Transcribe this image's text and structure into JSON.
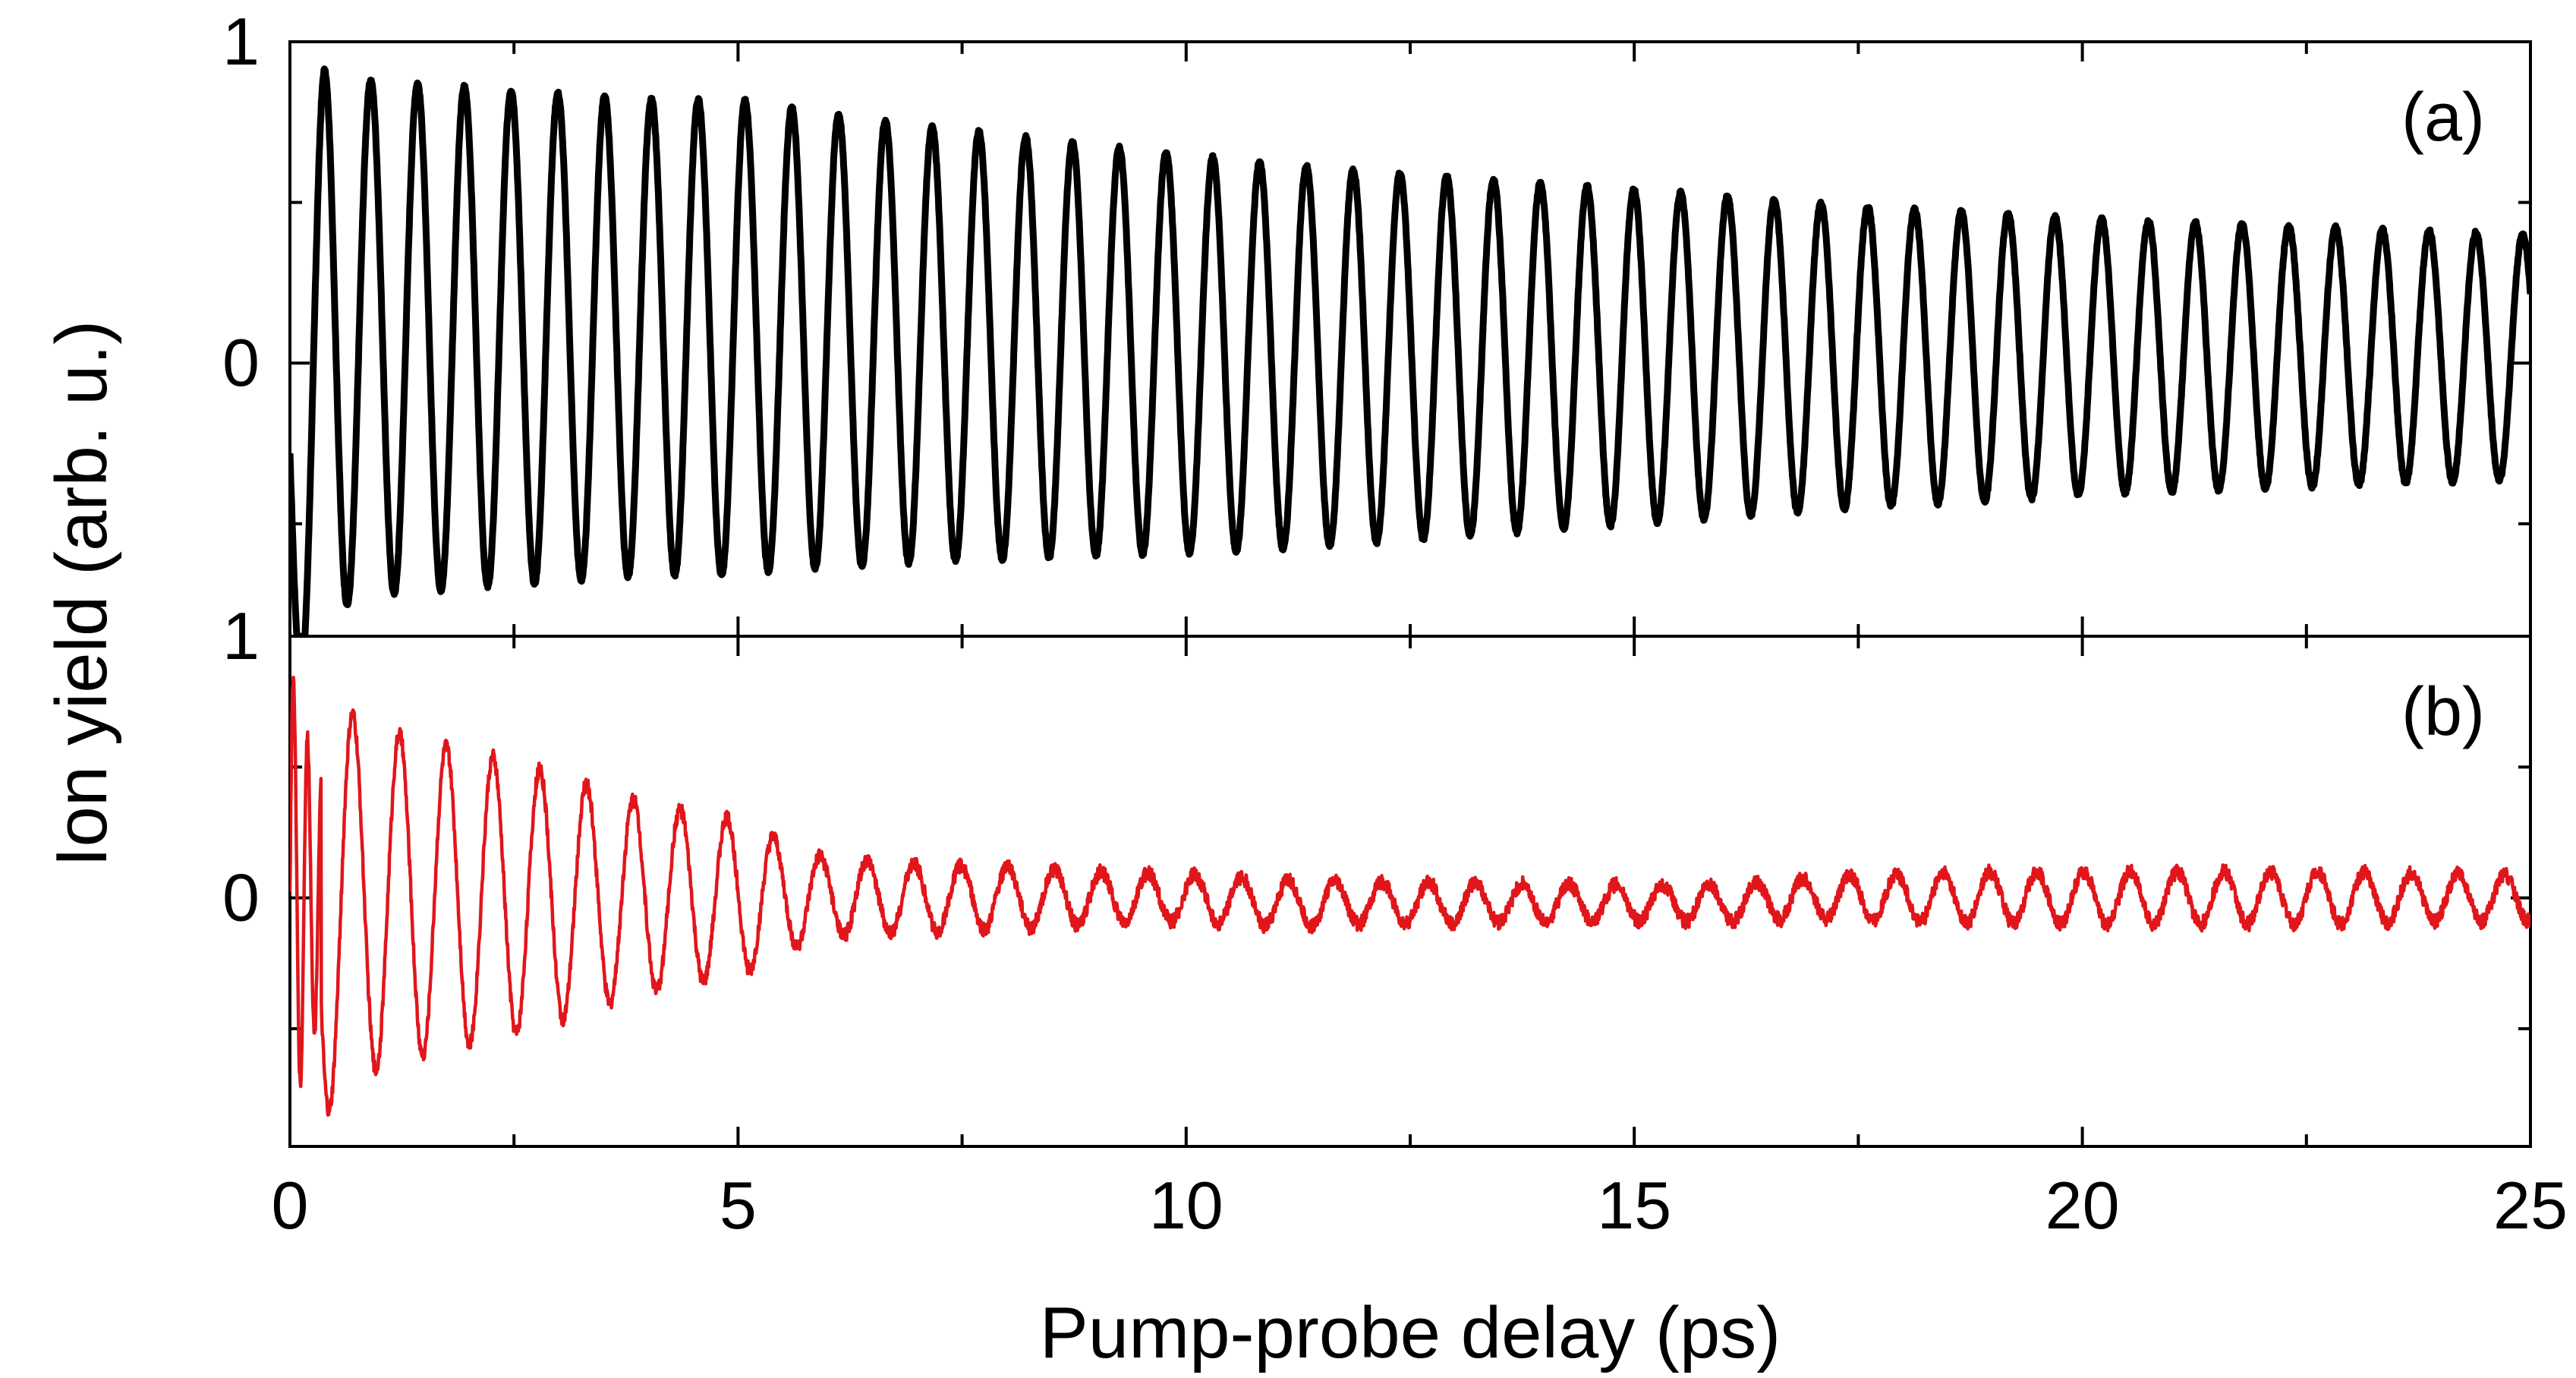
{
  "chart_data": [
    {
      "type": "line",
      "panel_label": "(a)",
      "ylabel": "Ion yield (arb. u.)",
      "xlim": [
        0,
        25
      ],
      "ylim": [
        -0.85,
        1.0
      ],
      "yticks": [
        {
          "value": 0,
          "label": "0"
        },
        {
          "value": 1,
          "label": "1"
        }
      ],
      "line_color": "#000000",
      "series": [
        {
          "x": [
            0.0,
            0.05,
            0.15,
            0.3,
            0.38,
            0.45,
            0.55,
            0.7,
            0.85,
            1.0,
            1.5,
            2.0,
            2.5,
            3.0,
            3.5,
            4.0,
            4.5,
            5.0,
            5.5,
            6.0,
            7.0,
            8.0,
            9.0,
            10.0,
            11.0,
            12.0,
            13.0,
            14.0,
            15.0,
            16.0,
            17.0,
            18.0,
            19.0,
            20.0,
            21.0,
            22.0,
            23.0,
            24.0,
            25.0
          ],
          "envelope": [
            0.62,
            0.7,
            0.78,
            0.88,
            0.93,
            0.9,
            0.85,
            0.82,
            0.8,
            0.8,
            0.79,
            0.78,
            0.77,
            0.76,
            0.75,
            0.74,
            0.74,
            0.74,
            0.72,
            0.71,
            0.68,
            0.66,
            0.64,
            0.62,
            0.6,
            0.58,
            0.56,
            0.54,
            0.52,
            0.5,
            0.48,
            0.46,
            0.45,
            0.43,
            0.42,
            0.41,
            0.4,
            0.39,
            0.38
          ],
          "offset": [
            -0.2,
            -0.22,
            -0.2,
            -0.1,
            -0.02,
            0.05,
            0.08,
            0.08,
            0.08,
            0.08,
            0.08,
            0.08,
            0.08,
            0.08,
            0.08,
            0.08,
            0.08,
            0.08,
            0.08,
            0.07,
            0.06,
            0.05,
            0.04,
            0.03,
            0.02,
            0.02,
            0.02,
            0.02,
            0.02,
            0.02,
            0.02,
            0.02,
            0.02,
            0.02,
            0.02,
            0.02,
            0.02,
            0.02,
            0.02
          ],
          "period_ps": 0.522,
          "first_peak_ps": 0.38
        }
      ]
    },
    {
      "type": "line",
      "panel_label": "(b)",
      "xlabel": "Pump-probe delay (ps)",
      "xlim": [
        0,
        25
      ],
      "ylim": [
        -0.95,
        1.0
      ],
      "xticks": [
        {
          "value": 0,
          "label": "0"
        },
        {
          "value": 5,
          "label": "5"
        },
        {
          "value": 10,
          "label": "10"
        },
        {
          "value": 15,
          "label": "15"
        },
        {
          "value": 20,
          "label": "20"
        },
        {
          "value": 25,
          "label": "25"
        }
      ],
      "yticks": [
        {
          "value": 0,
          "label": "0"
        },
        {
          "value": 1,
          "label": "1"
        }
      ],
      "line_color": "#e0161b",
      "series": [
        {
          "x": [
            0.0,
            0.2,
            0.4,
            0.7,
            1.0,
            1.5,
            2.0,
            2.5,
            3.0,
            3.5,
            4.0,
            4.5,
            5.0,
            5.3,
            5.6,
            6.0,
            7.0,
            8.0,
            9.0,
            10.0,
            11.0,
            12.0,
            13.0,
            14.0,
            15.0,
            16.0,
            17.0,
            18.0,
            19.0,
            20.0,
            21.0,
            22.0,
            23.0,
            24.0,
            25.0
          ],
          "envelope": [
            0.9,
            0.85,
            0.78,
            0.7,
            0.65,
            0.6,
            0.56,
            0.52,
            0.47,
            0.41,
            0.36,
            0.33,
            0.3,
            0.25,
            0.19,
            0.15,
            0.13,
            0.12,
            0.1,
            0.09,
            0.09,
            0.08,
            0.08,
            0.07,
            0.07,
            0.07,
            0.08,
            0.09,
            0.1,
            0.1,
            0.1,
            0.1,
            0.1,
            0.09,
            0.09
          ],
          "offset": [
            0.0,
            0.0,
            -0.05,
            0.0,
            0.0,
            0.0,
            0.0,
            0.0,
            0.0,
            0.0,
            0.0,
            0.0,
            0.0,
            0.0,
            0.0,
            0.0,
            0.0,
            0.0,
            0.0,
            0.0,
            -0.02,
            -0.02,
            -0.02,
            -0.02,
            -0.02,
            -0.02,
            0.0,
            0.0,
            0.0,
            0.0,
            0.0,
            0.0,
            0.0,
            0.0,
            0.0
          ],
          "period_ps": 0.522,
          "first_peak_ps": 0.7
        }
      ]
    }
  ]
}
